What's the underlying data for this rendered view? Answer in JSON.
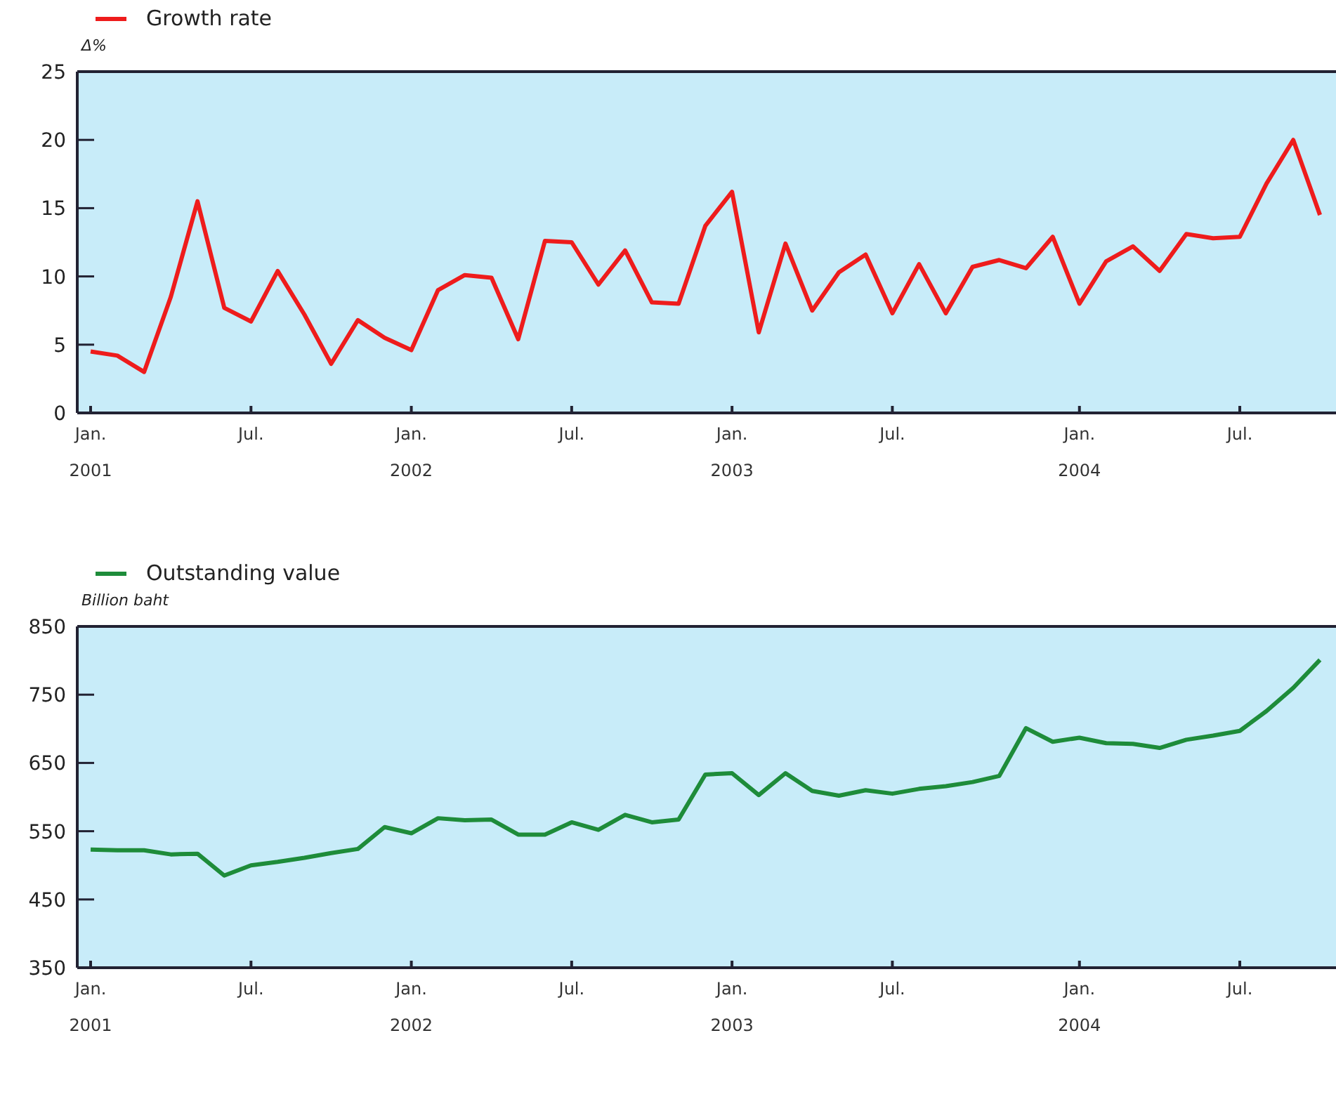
{
  "chart_data": [
    {
      "type": "line",
      "ylabel": "Δ%",
      "legend": "top left",
      "grid": false,
      "categories": [
        "Jan. 2001",
        null,
        null,
        null,
        null,
        null,
        "Jul.",
        null,
        null,
        null,
        null,
        null,
        "Jan. 2002",
        null,
        null,
        null,
        null,
        null,
        "Jul.",
        null,
        null,
        null,
        null,
        null,
        "Jan. 2003",
        null,
        null,
        null,
        null,
        null,
        "Jul.",
        null,
        null,
        null,
        null,
        null,
        null,
        "Jan. 2004",
        null,
        null,
        null,
        null,
        null,
        "Jul.",
        null,
        null,
        null
      ],
      "ylim": [
        0,
        25
      ],
      "yticks": [
        0,
        5,
        10,
        15,
        20,
        25
      ],
      "series": [
        {
          "name": "Growth rate",
          "color": "#ee1c1c",
          "values": [
            4.5,
            4.2,
            3.0,
            8.5,
            15.5,
            7.7,
            6.7,
            10.4,
            7.2,
            3.6,
            6.8,
            5.5,
            4.6,
            9.0,
            10.1,
            9.9,
            5.4,
            12.6,
            12.5,
            9.4,
            11.9,
            8.1,
            8.0,
            13.7,
            16.2,
            5.9,
            12.4,
            7.5,
            10.3,
            11.6,
            7.3,
            10.9,
            7.3,
            10.7,
            11.2,
            10.6,
            12.9,
            8.0,
            11.1,
            12.2,
            10.4,
            13.1,
            12.8,
            12.9,
            16.8,
            20.0,
            14.5
          ]
        }
      ]
    },
    {
      "type": "line",
      "ylabel": "Billion baht",
      "legend": "top left",
      "grid": false,
      "categories": [
        "Jan. 2001",
        null,
        null,
        null,
        null,
        null,
        "Jul.",
        null,
        null,
        null,
        null,
        null,
        "Jan. 2002",
        null,
        null,
        null,
        null,
        null,
        "Jul.",
        null,
        null,
        null,
        null,
        null,
        "Jan. 2003",
        null,
        null,
        null,
        null,
        null,
        "Jul.",
        null,
        null,
        null,
        null,
        null,
        null,
        "Jan. 2004",
        null,
        null,
        null,
        null,
        null,
        "Jul.",
        null,
        null,
        null
      ],
      "ylim": [
        350,
        850
      ],
      "yticks": [
        350,
        450,
        550,
        650,
        750,
        850
      ],
      "series": [
        {
          "name": "Outstanding value",
          "color": "#1e8c3a",
          "values": [
            523,
            522,
            522,
            516,
            517,
            485,
            500,
            505,
            511,
            518,
            524,
            556,
            547,
            569,
            566,
            567,
            545,
            545,
            563,
            552,
            574,
            563,
            567,
            633,
            635,
            603,
            635,
            609,
            602,
            610,
            605,
            612,
            616,
            622,
            631,
            701,
            681,
            687,
            679,
            678,
            672,
            684,
            690,
            697,
            726,
            760,
            801
          ]
        }
      ]
    }
  ]
}
